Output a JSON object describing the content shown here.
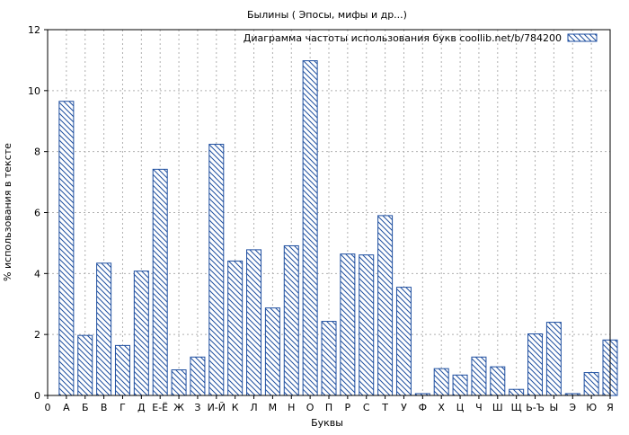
{
  "chart_data": {
    "type": "bar",
    "title": "Былины ( Эпосы,  мифы и др...)",
    "xlabel": "Буквы",
    "ylabel": "% использования в тексте",
    "ylim": [
      0,
      12
    ],
    "yticks": [
      "0",
      "2",
      "4",
      "6",
      "8",
      "10",
      "12"
    ],
    "grid": true,
    "legend_position": "top-right",
    "series": [
      {
        "name": "Диаграмма частоты использования букв coollib.net/b/784200",
        "color": "#1f4fa0",
        "values": [
          9.65,
          1.97,
          4.34,
          1.64,
          4.08,
          7.42,
          0.84,
          1.26,
          8.24,
          4.41,
          4.78,
          2.87,
          4.91,
          10.98,
          2.43,
          4.64,
          4.61,
          5.9,
          3.55,
          0.06,
          0.88,
          0.67,
          1.26,
          0.94,
          0.2,
          2.02,
          2.4,
          0.06,
          0.75,
          1.82
        ]
      }
    ],
    "categories": [
      "А",
      "Б",
      "В",
      "Г",
      "Д",
      "Е-Ё",
      "Ж",
      "З",
      "И-Й",
      "К",
      "Л",
      "М",
      "Н",
      "О",
      "П",
      "Р",
      "С",
      "Т",
      "У",
      "Ф",
      "Х",
      "Ц",
      "Ч",
      "Ш",
      "Щ",
      "Ь-Ъ",
      "Ы",
      "Э",
      "Ю",
      "Я"
    ],
    "x_axis_labels": [
      "0",
      "А",
      "Б",
      "В",
      "Г",
      "Д",
      "Е-Ё",
      "Ж",
      "З",
      "И-Й",
      "К",
      "Л",
      "М",
      "Н",
      "О",
      "П",
      "Р",
      "С",
      "Т",
      "У",
      "Ф",
      "Х",
      "Ц",
      "Ч",
      "Ш",
      "Щ",
      "Ь-Ъ",
      "Ы",
      "Э",
      "Ю",
      "Я"
    ]
  }
}
